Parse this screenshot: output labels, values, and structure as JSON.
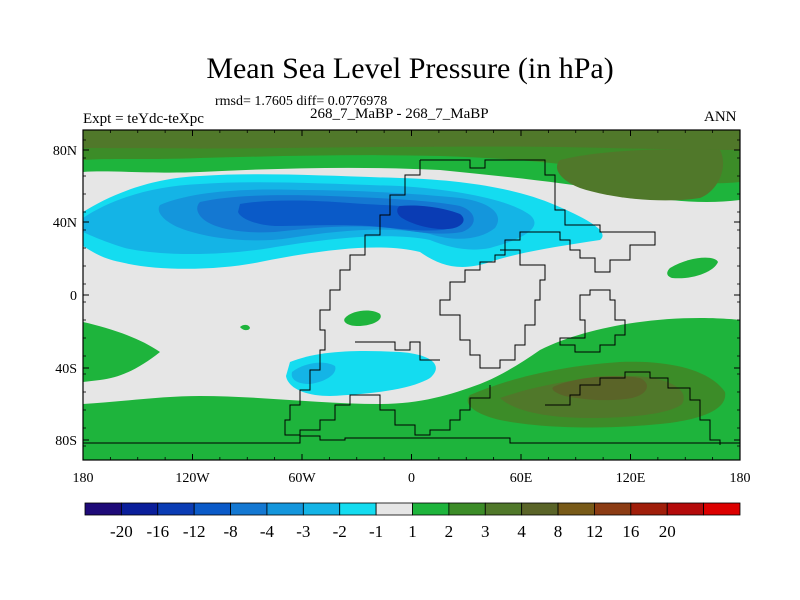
{
  "title": "Mean Sea Level Pressure (in hPa)",
  "stats": "rmsd= 1.7605 diff= 0.0776978",
  "left_label": "Expt = teYdc-teXpc",
  "center_label": "268_7_MaBP - 268_7_MaBP",
  "right_label": "ANN",
  "y_ticks": [
    "80N",
    "40N",
    "0",
    "40S",
    "80S"
  ],
  "x_ticks": [
    "180",
    "120W",
    "60W",
    "0",
    "60E",
    "120E",
    "180"
  ],
  "colorbar": {
    "colors": [
      "#1e0a78",
      "#0a1e9a",
      "#0a3cb4",
      "#0a5ac8",
      "#1478d2",
      "#1496dc",
      "#14b4e6",
      "#14dcf0",
      "#e6e6e6",
      "#1eb43c",
      "#3c8c28",
      "#50782a",
      "#5a6428",
      "#785a18",
      "#8c3c14",
      "#a01e0a",
      "#b40a0a",
      "#dc0000"
    ],
    "labels": [
      "-20",
      "-16",
      "-12",
      "-8",
      "-4",
      "-3",
      "-2",
      "-1",
      "1",
      "2",
      "3",
      "4",
      "8",
      "12",
      "16",
      "20"
    ]
  }
}
